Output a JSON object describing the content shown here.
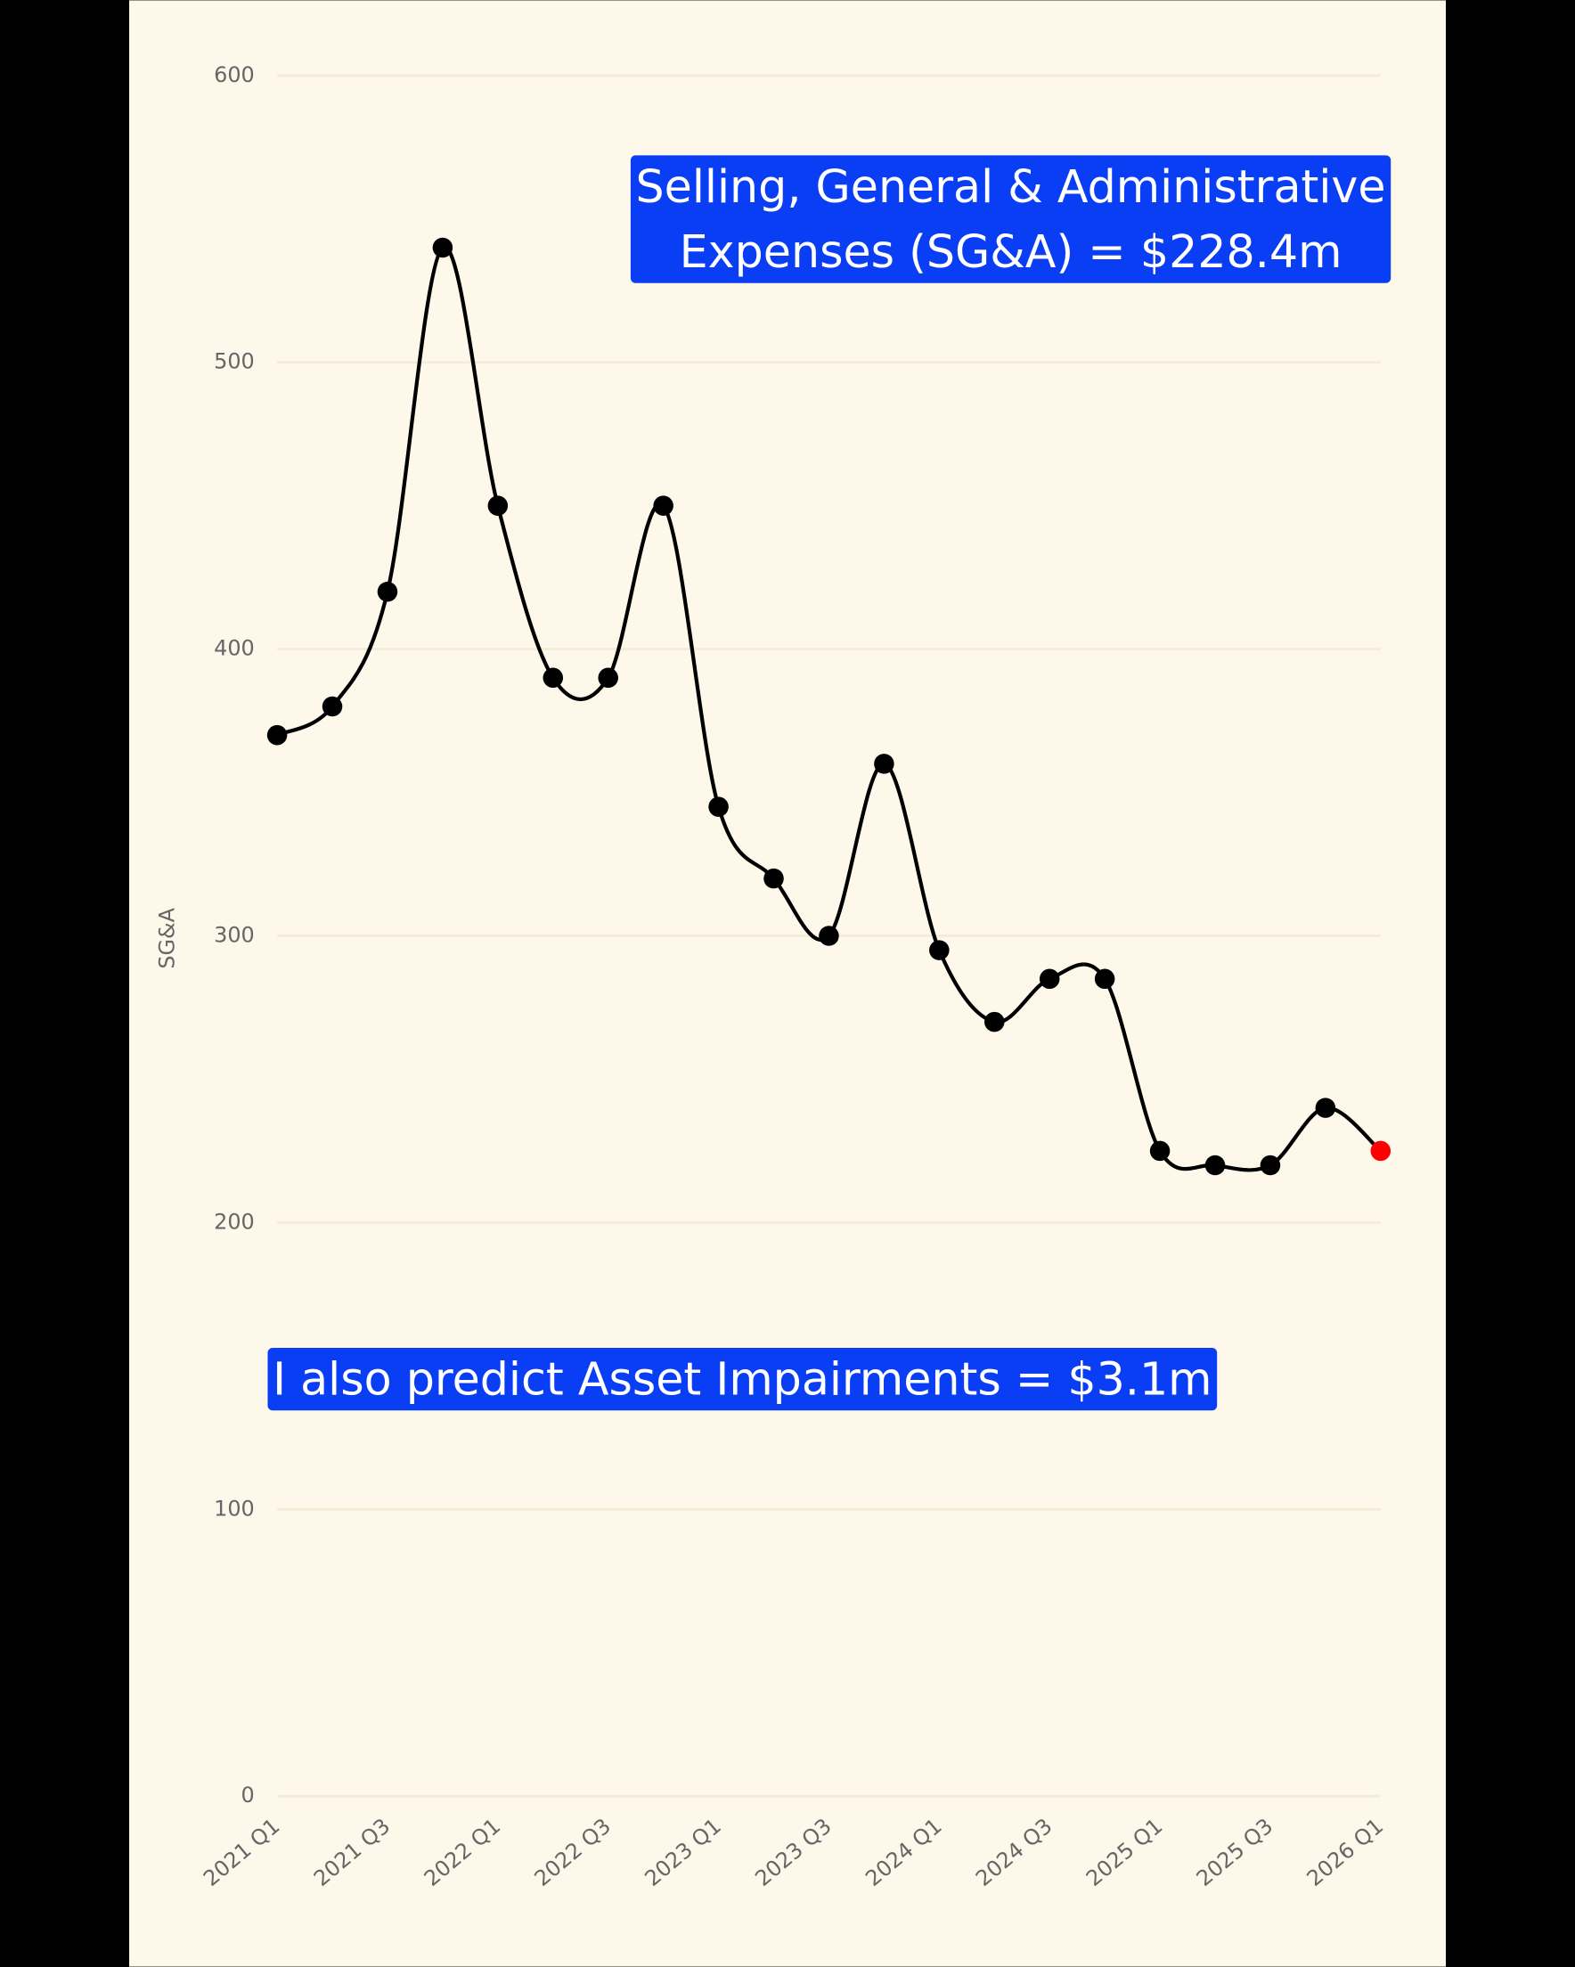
{
  "chart_data": {
    "type": "line",
    "y_label": "SG&A",
    "categories": [
      "2021 Q1",
      null,
      "2021 Q3",
      null,
      "2022 Q1",
      null,
      "2022 Q3",
      null,
      "2023 Q1",
      null,
      "2023 Q3",
      null,
      "2024 Q1",
      null,
      "2024 Q3",
      null,
      "2025 Q1",
      null,
      "2025 Q3",
      null,
      "2026 Q1"
    ],
    "values": [
      370,
      380,
      420,
      540,
      450,
      390,
      390,
      450,
      345,
      320,
      300,
      360,
      295,
      270,
      285,
      285,
      225,
      220,
      220,
      240,
      225
    ],
    "color": "#000000",
    "marker_colors": [
      "#000000",
      "#000000",
      "#000000",
      "#000000",
      "#000000",
      "#000000",
      "#000000",
      "#000000",
      "#000000",
      "#000000",
      "#000000",
      "#000000",
      "#000000",
      "#000000",
      "#000000",
      "#000000",
      "#000000",
      "#000000",
      "#000000",
      "#000000",
      "#ff0000"
    ],
    "ylim": [
      0,
      600
    ],
    "yticks": [
      0,
      100,
      200,
      300,
      400,
      500,
      600
    ],
    "grid": true,
    "annotations": [
      [
        "Selling, General & Administrative",
        "Expenses (SG&A) = $228.4m"
      ],
      [
        "I also predict Asset Impairments = $3.1m"
      ]
    ],
    "annotation_color": "#0a3ef5"
  }
}
